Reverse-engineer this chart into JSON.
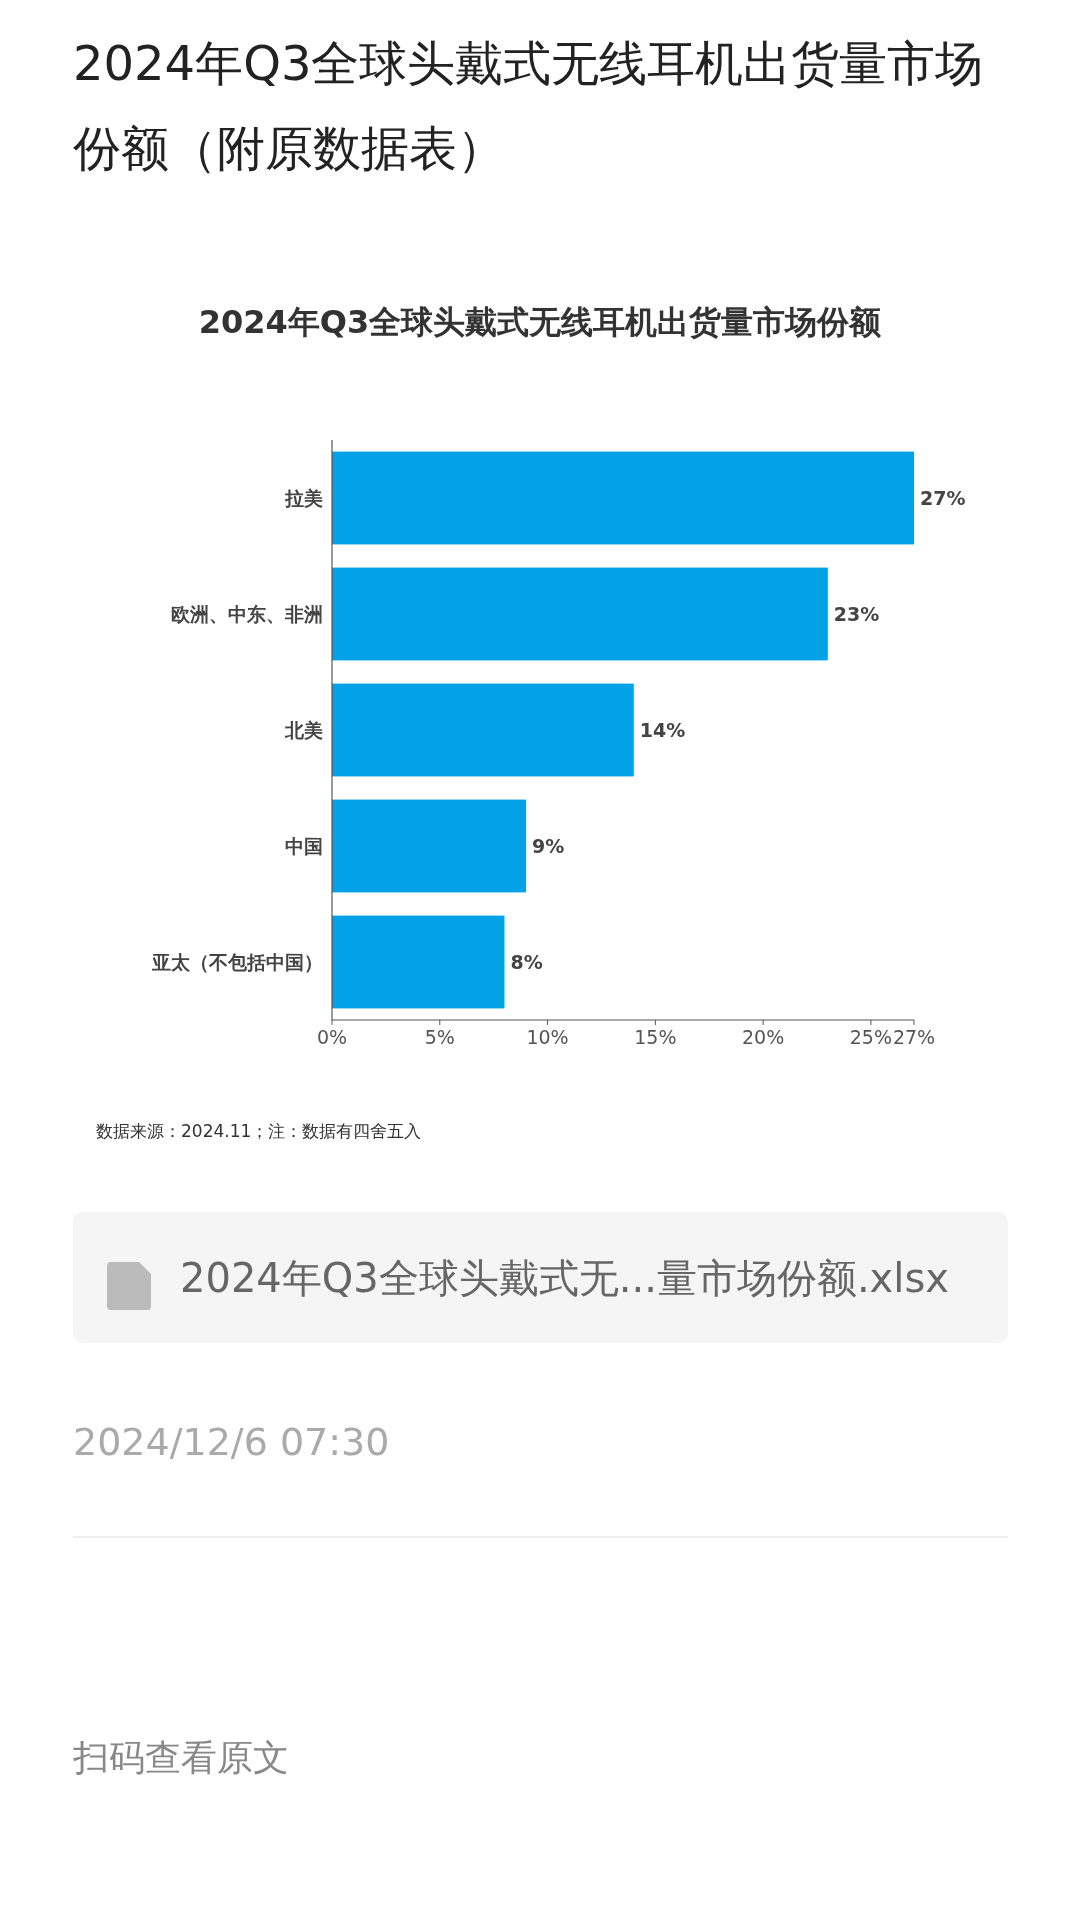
{
  "chart_data": {
    "type": "bar",
    "orientation": "horizontal",
    "title": "2024年Q3全球头戴式无线耳机出货量市场份额（附原数据表）",
    "subtitle": "2024年Q3全球头戴式无线耳机出货量市场份额",
    "categories": [
      "拉美",
      "欧洲、中东、非洲",
      "北美",
      "中国",
      "亚太（不包括中国）"
    ],
    "values": [
      27,
      23,
      14,
      9,
      8
    ],
    "value_labels": [
      "27%",
      "23%",
      "14%",
      "9%",
      "8%"
    ],
    "color": "#03a1e6",
    "xlim": [
      0,
      27
    ],
    "xticks": [
      {
        "value": 0,
        "label": "0%"
      },
      {
        "value": 5,
        "label": "5%"
      },
      {
        "value": 10,
        "label": "10%"
      },
      {
        "value": 15,
        "label": "15%"
      },
      {
        "value": 20,
        "label": "20%"
      },
      {
        "value": 25,
        "label": "25%"
      },
      {
        "value": 27,
        "label": "27%"
      }
    ],
    "annotations": [
      "数据来源：2024.11；注：数据有四舍五入",
      "2024年Q3全球头戴式无...量市场份额.xlsx",
      "2024/12/6 07:30",
      "扫码查看原文"
    ]
  }
}
